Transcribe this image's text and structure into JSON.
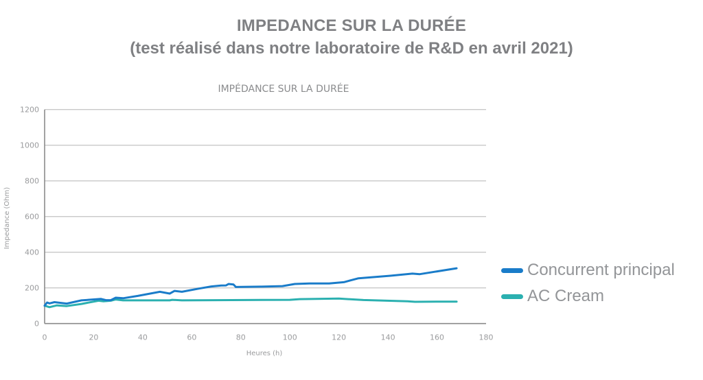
{
  "header": {
    "title": "IMPEDANCE SUR LA DURÉE",
    "subtitle": "(test réalisé dans notre laboratoire de R&D en avril 2021)"
  },
  "colors": {
    "concurrent": "#1a7cc9",
    "ac_cream": "#2bb0b0",
    "grid": "#c8c8c8",
    "axis": "#8a8a8a",
    "text": "#8a8b8d"
  },
  "chart_data": {
    "type": "line",
    "title": "IMPÉDANCE SUR LA DURÉE",
    "xlabel": "Heures (h)",
    "ylabel": "Impedance (Ohm)",
    "xlim": [
      0,
      180
    ],
    "ylim": [
      0,
      1200
    ],
    "xticks": [
      0,
      20,
      40,
      60,
      80,
      100,
      120,
      140,
      160,
      180
    ],
    "yticks": [
      0,
      200,
      400,
      600,
      800,
      1000,
      1200
    ],
    "grid": "horizontal",
    "legend_position": "right",
    "series": [
      {
        "name": "Concurrent principal",
        "x": [
          0,
          1,
          2,
          4,
          9,
          15,
          23,
          25,
          27,
          29,
          32,
          38,
          47,
          51,
          53,
          56,
          63,
          68,
          72,
          74,
          75,
          77,
          78,
          88,
          97,
          102,
          108,
          116,
          122,
          128,
          141,
          150,
          153,
          168
        ],
        "y": [
          100,
          118,
          113,
          120,
          112,
          130,
          138,
          131,
          131,
          145,
          142,
          155,
          178,
          168,
          183,
          178,
          196,
          208,
          213,
          214,
          222,
          219,
          205,
          207,
          210,
          222,
          225,
          225,
          232,
          254,
          268,
          280,
          277,
          310
        ]
      },
      {
        "name": "AC Cream",
        "x": [
          0,
          2,
          5,
          9,
          15,
          22,
          24,
          27,
          29,
          32,
          40,
          51,
          52,
          56,
          70,
          100,
          104,
          120,
          130,
          148,
          151,
          160,
          168
        ],
        "y": [
          100,
          92,
          102,
          98,
          110,
          128,
          125,
          128,
          135,
          130,
          130,
          130,
          133,
          130,
          131,
          133,
          137,
          140,
          132,
          125,
          122,
          123,
          123
        ]
      }
    ]
  }
}
